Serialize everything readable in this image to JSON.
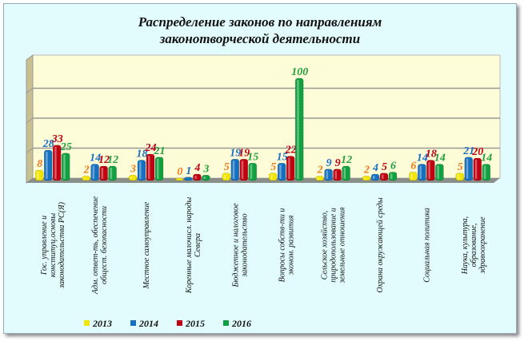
{
  "chart_data": {
    "type": "bar",
    "title_line1": "Распределение законов по направлениям",
    "title_line2": "законотворческой деятельности",
    "categories": [
      "Гос. управление и конституц.основы законодательства РС(Я)",
      "Адм. ответ-ть, обеспечение общест. безопасности",
      "Местное самоуправление",
      "Коренные малочисл. народы Севера",
      "Бюджетное и налоговое законодательство",
      "Вопросы собств-ти и эконом. развития",
      "Сельское хозяйство, природопользование и земельные отношения",
      "Охрана окружающей среды",
      "Социальная политика",
      "Наука, культура, образование, здравоохранение"
    ],
    "series": [
      {
        "name": "2013",
        "color": "#f2e600",
        "label_color": "#f07a20",
        "values": [
          8,
          2,
          3,
          0,
          5,
          5,
          2,
          2,
          6,
          5
        ]
      },
      {
        "name": "2014",
        "color": "#1670c0",
        "label_color": "#1a6fc4",
        "values": [
          28,
          14,
          18,
          1,
          19,
          15,
          9,
          4,
          14,
          21
        ]
      },
      {
        "name": "2015",
        "color": "#c00010",
        "label_color": "#c00010",
        "values": [
          33,
          12,
          24,
          4,
          19,
          22,
          9,
          5,
          18,
          20
        ]
      },
      {
        "name": "2016",
        "color": "#10a040",
        "label_color": "#20a040",
        "values": [
          25,
          12,
          21,
          3,
          15,
          100,
          12,
          6,
          14,
          14
        ]
      }
    ],
    "ylim": [
      0,
      120
    ],
    "grid": true,
    "legend": "bottom"
  }
}
